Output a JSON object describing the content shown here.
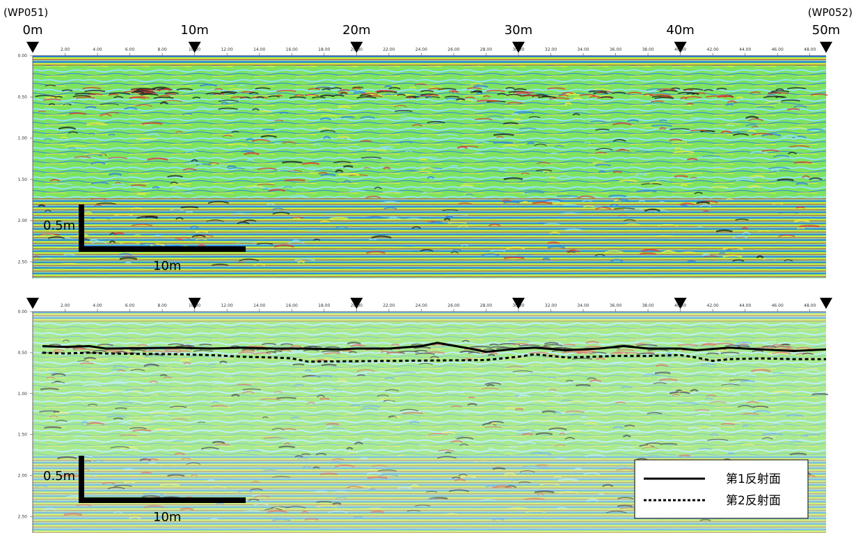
{
  "header": {
    "start_point": "(WP051)",
    "end_point": "(WP052)"
  },
  "distance_labels": [
    "0m",
    "10m",
    "20m",
    "30m",
    "40m",
    "50m"
  ],
  "scale_bar": {
    "vertical": "0.5m",
    "horizontal": "10m"
  },
  "legend": {
    "first": "第1反射面",
    "second": "第2反射面"
  },
  "colors": {
    "background": "#7ee35f",
    "band_blue": "#2a7fe8",
    "band_cyan": "#8fe3f5",
    "band_yellow": "#f2ef3c",
    "band_red": "#d83a2a",
    "band_black": "#1a1a1a"
  },
  "chart_data": [
    {
      "type": "heatmap",
      "title": "",
      "x_axis": {
        "unit": "m",
        "range": [
          0,
          49
        ],
        "tick_labels": [
          "2.00",
          "4.00",
          "6.00",
          "8.00",
          "10.00",
          "12.00",
          "14.00",
          "16.00",
          "18.00",
          "20.00",
          "22.00",
          "24.00",
          "26.00",
          "28.00",
          "30.00",
          "32.00",
          "34.00",
          "36.00",
          "38.00",
          "40.00",
          "42.00",
          "44.00",
          "46.00",
          "48.00"
        ]
      },
      "y_axis": {
        "unit": "m",
        "range": [
          0,
          2.7
        ],
        "tick_labels": [
          "0.00",
          "0.50",
          "1.00",
          "1.50",
          "2.00",
          "2.50"
        ]
      },
      "markers_x": [
        0,
        10,
        20,
        30,
        40,
        49
      ]
    },
    {
      "type": "heatmap",
      "title": "",
      "x_axis": {
        "unit": "m",
        "range": [
          0,
          49
        ],
        "tick_labels": [
          "2.00",
          "4.00",
          "6.00",
          "8.00",
          "10.00",
          "12.00",
          "14.00",
          "16.00",
          "18.00",
          "20.00",
          "22.00",
          "24.00",
          "26.00",
          "28.00",
          "30.00",
          "32.00",
          "34.00",
          "36.00",
          "38.00",
          "40.00",
          "42.00",
          "44.00",
          "46.00",
          "48.00"
        ]
      },
      "y_axis": {
        "unit": "m",
        "range": [
          0,
          2.7
        ],
        "tick_labels": [
          "0.00",
          "0.50",
          "1.00",
          "1.50",
          "2.00",
          "2.50"
        ]
      },
      "markers_x": [
        0,
        10,
        20,
        30,
        40,
        49
      ],
      "series": [
        {
          "name": "第1反射面",
          "style": "solid",
          "points": [
            [
              0.6,
              0.42
            ],
            [
              2,
              0.43
            ],
            [
              3.5,
              0.42
            ],
            [
              4.5,
              0.45
            ],
            [
              9,
              0.44
            ],
            [
              11,
              0.45
            ],
            [
              13,
              0.44
            ],
            [
              15,
              0.45
            ],
            [
              17,
              0.45
            ],
            [
              19,
              0.46
            ],
            [
              20,
              0.45
            ],
            [
              22,
              0.45
            ],
            [
              24,
              0.42
            ],
            [
              25,
              0.38
            ],
            [
              27,
              0.45
            ],
            [
              28,
              0.49
            ],
            [
              29,
              0.47
            ],
            [
              30,
              0.45
            ],
            [
              31,
              0.44
            ],
            [
              33,
              0.47
            ],
            [
              35,
              0.45
            ],
            [
              36.5,
              0.42
            ],
            [
              38,
              0.45
            ],
            [
              40,
              0.45
            ],
            [
              41,
              0.47
            ],
            [
              43,
              0.44
            ],
            [
              45,
              0.46
            ],
            [
              47,
              0.48
            ],
            [
              49,
              0.46
            ]
          ]
        },
        {
          "name": "第2反射面",
          "style": "dashed",
          "points": [
            [
              0.6,
              0.5
            ],
            [
              2,
              0.51
            ],
            [
              3.5,
              0.5
            ],
            [
              4.5,
              0.51
            ],
            [
              9,
              0.52
            ],
            [
              11,
              0.53
            ],
            [
              13,
              0.55
            ],
            [
              15,
              0.56
            ],
            [
              16,
              0.57
            ],
            [
              17,
              0.61
            ],
            [
              28,
              0.59
            ],
            [
              30,
              0.55
            ],
            [
              31,
              0.52
            ],
            [
              32,
              0.54
            ],
            [
              33,
              0.56
            ],
            [
              36,
              0.54
            ],
            [
              38,
              0.54
            ],
            [
              40,
              0.53
            ],
            [
              41,
              0.56
            ],
            [
              42,
              0.6
            ],
            [
              43,
              0.58
            ],
            [
              45,
              0.57
            ],
            [
              47,
              0.58
            ],
            [
              49,
              0.58
            ]
          ]
        }
      ]
    }
  ]
}
